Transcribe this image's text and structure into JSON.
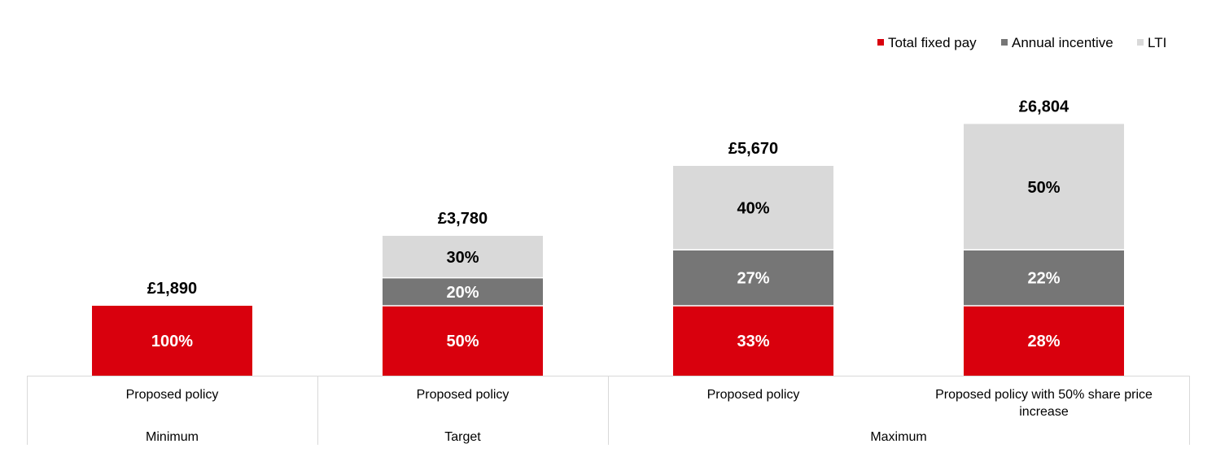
{
  "chart_data": {
    "type": "bar",
    "stacked": true,
    "categories": [
      "Proposed policy",
      "Proposed policy",
      "Proposed policy",
      "Proposed policy with 50% share price increase"
    ],
    "groups": [
      {
        "label": "Minimum",
        "span": 1
      },
      {
        "label": "Target",
        "span": 1
      },
      {
        "label": "Maximum",
        "span": 2
      }
    ],
    "series": [
      {
        "name": "Total fixed pay",
        "color": "#d9000d",
        "label_color": "#ffffff",
        "values": [
          1890,
          1890,
          1890,
          1890
        ],
        "labels": [
          "100%",
          "50%",
          "33%",
          "28%"
        ]
      },
      {
        "name": "Annual incentive",
        "color": "#767676",
        "label_color": "#ffffff",
        "values": [
          0,
          756,
          1512,
          1512
        ],
        "labels": [
          "",
          "20%",
          "27%",
          "22%"
        ]
      },
      {
        "name": "LTI",
        "color": "#d9d9d9",
        "label_color": "#000000",
        "values": [
          0,
          1134,
          2268,
          3402
        ],
        "labels": [
          "",
          "30%",
          "40%",
          "50%"
        ]
      }
    ],
    "totals": [
      "£1,890",
      "£3,780",
      "£5,670",
      "£6,804"
    ],
    "ylim": [
      0,
      7800
    ],
    "legend_position": "top-right",
    "grid": false,
    "title": "",
    "xlabel": "",
    "ylabel": ""
  }
}
